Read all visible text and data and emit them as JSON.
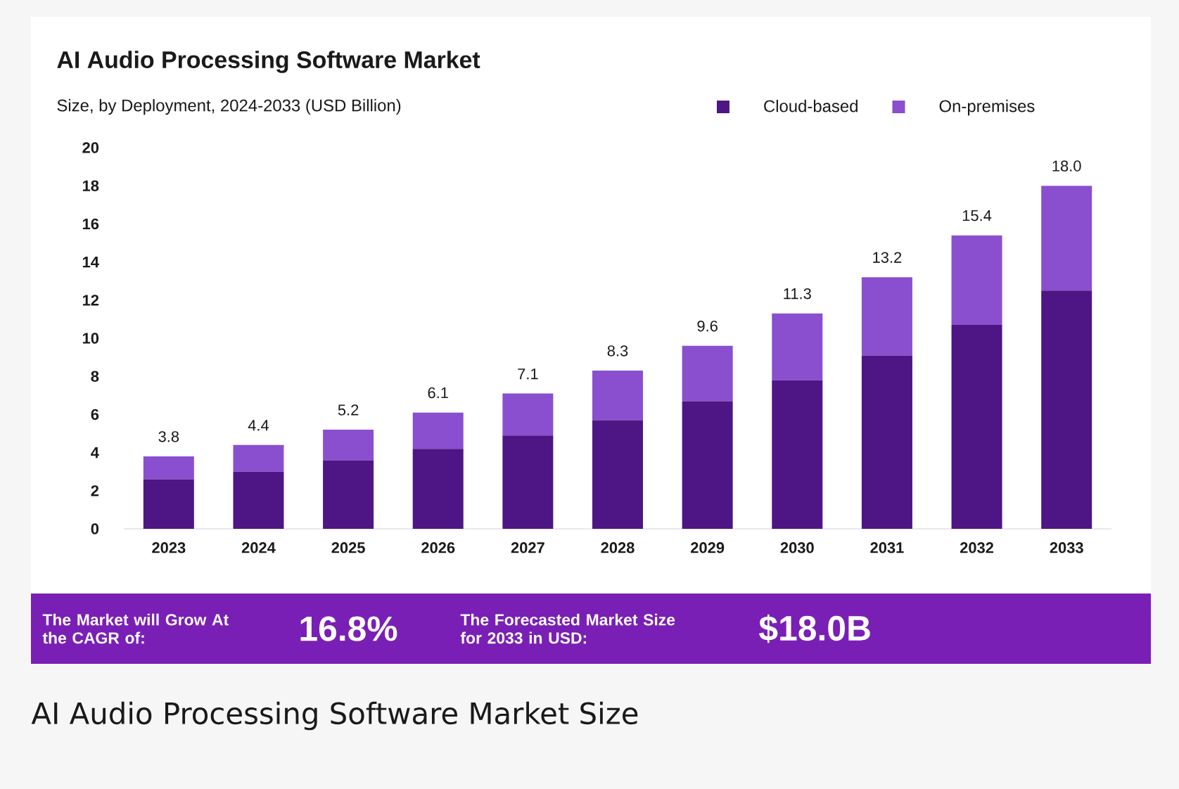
{
  "chart_data": {
    "type": "bar",
    "title": "AI Audio Processing Software Market",
    "subtitle": "Size, by Deployment, 2024-2033 (USD Billion)",
    "categories": [
      "2023",
      "2024",
      "2025",
      "2026",
      "2027",
      "2028",
      "2029",
      "2030",
      "2031",
      "2032",
      "2033"
    ],
    "series": [
      {
        "name": "Cloud-based",
        "color": "#4e1585",
        "values": [
          2.6,
          3.0,
          3.6,
          4.2,
          4.9,
          5.7,
          6.7,
          7.8,
          9.1,
          10.7,
          12.5
        ]
      },
      {
        "name": "On-premises",
        "color": "#8a4fcf",
        "values": [
          1.2,
          1.4,
          1.6,
          1.9,
          2.2,
          2.6,
          2.9,
          3.5,
          4.1,
          4.7,
          5.5
        ]
      }
    ],
    "stacked": true,
    "totals": [
      "3.8",
      "4.4",
      "5.2",
      "6.1",
      "7.1",
      "8.3",
      "9.6",
      "11.3",
      "13.2",
      "15.4",
      "18.0"
    ],
    "ylim": [
      0,
      20
    ],
    "yticks": [
      0,
      2,
      4,
      6,
      8,
      10,
      12,
      14,
      16,
      18,
      20
    ],
    "legend": "top right",
    "annotations": [
      "The Market will Grow At the CAGR of:",
      "16.8%",
      "The Forecasted Market Size for 2033 in USD:",
      "$18.0B",
      "AI Audio Processing Software Market Size"
    ]
  }
}
